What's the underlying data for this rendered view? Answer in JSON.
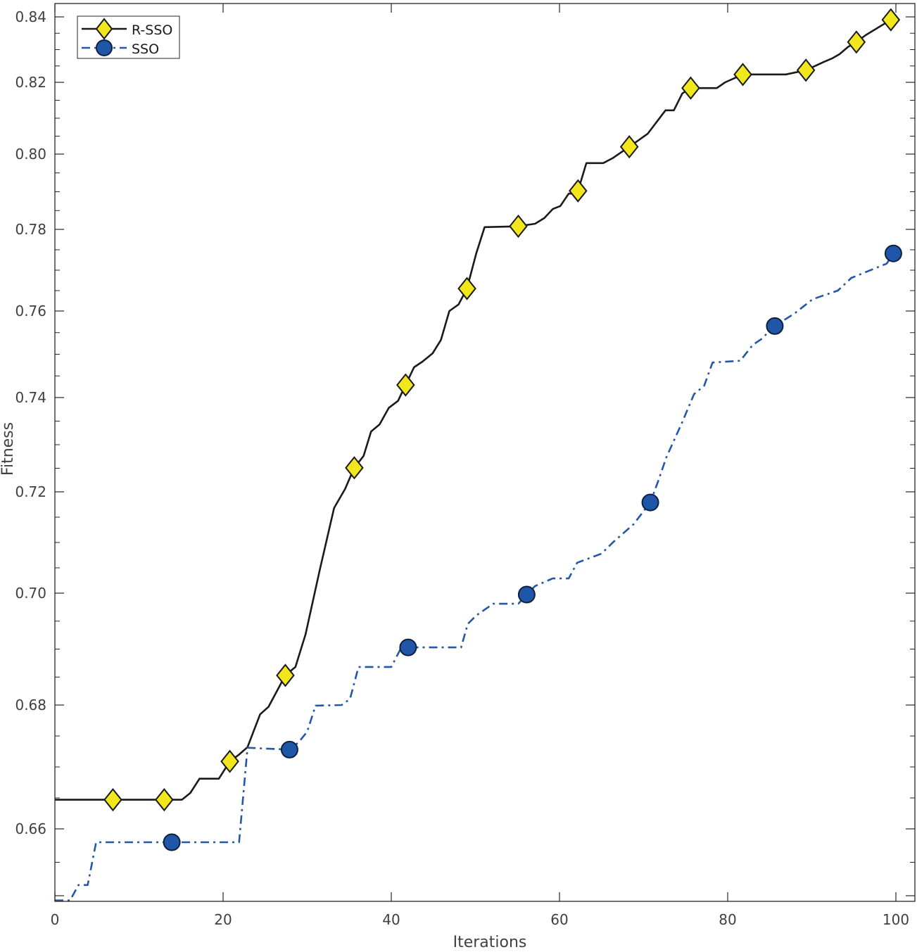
{
  "chart_data": {
    "type": "line",
    "title": "",
    "xlabel": "Iterations",
    "ylabel": "Fitness",
    "xlim": [
      0,
      102.2
    ],
    "ylim": [
      0.6492,
      0.8442
    ],
    "xticks": [
      0,
      20,
      40,
      60,
      80,
      100
    ],
    "xtick_labels": [
      "0",
      "20",
      "40",
      "60",
      "80",
      "100"
    ],
    "yticks": [
      0.65,
      0.66,
      0.68,
      0.7,
      0.72,
      0.74,
      0.76,
      0.78,
      0.8,
      0.82,
      0.84
    ],
    "ytick_labels": [
      "",
      "0.66",
      "0.68",
      "0.70",
      "0.72",
      "0.74",
      "0.76",
      "0.78",
      "0.80",
      "0.82",
      "0.84"
    ],
    "grid": false,
    "legend_position": "top-left",
    "series": [
      {
        "name": "R-SSO",
        "color": "#1a1a1a",
        "marker": "diamond",
        "marker_color": "#f2e61c",
        "line_style": "solid",
        "x": [
          0,
          15.1,
          16.1,
          17.2,
          19.5,
          20.8,
          21.9,
          22.9,
          24.4,
          25.4,
          27.4,
          28.6,
          29.8,
          31.5,
          33.2,
          34.5,
          35.6,
          36.7,
          37.6,
          38.6,
          39.7,
          40.8,
          41.8,
          42.7,
          43.7,
          44.9,
          45.9,
          46.9,
          48.0,
          49.0,
          50.1,
          51.1,
          55.0,
          57.1,
          58.2,
          59.2,
          60.1,
          61.1,
          62.1,
          63.2,
          65.2,
          66.3,
          68.4,
          70.5,
          72.6,
          73.6,
          74.6,
          75.6,
          78.7,
          79.7,
          81.8,
          86.9,
          89.3,
          91.4,
          92.4,
          93.3,
          94.3,
          95.3,
          96.4,
          99.4
        ],
        "y": [
          0.6647,
          0.6647,
          0.6658,
          0.6681,
          0.6681,
          0.6709,
          0.672,
          0.6732,
          0.6785,
          0.6797,
          0.6853,
          0.6868,
          0.6926,
          0.7046,
          0.7168,
          0.7206,
          0.7251,
          0.7276,
          0.7328,
          0.7343,
          0.7378,
          0.7393,
          0.7433,
          0.747,
          0.7483,
          0.7502,
          0.7533,
          0.76,
          0.7616,
          0.7655,
          0.7741,
          0.7806,
          0.7808,
          0.7815,
          0.783,
          0.7854,
          0.7862,
          0.7895,
          0.7895,
          0.7976,
          0.7976,
          0.7989,
          0.8022,
          0.8057,
          0.8122,
          0.8122,
          0.8169,
          0.8184,
          0.8184,
          0.82,
          0.8224,
          0.8224,
          0.8237,
          0.8262,
          0.8273,
          0.8286,
          0.8308,
          0.8323,
          0.8344,
          0.8391
        ],
        "marker_x": [
          6.9,
          13.0,
          20.8,
          27.4,
          35.6,
          41.7,
          49.0,
          55.1,
          62.2,
          68.3,
          75.6,
          81.8,
          89.3,
          95.3,
          99.4
        ]
      },
      {
        "name": "SSO",
        "color": "#2458a6",
        "marker": "circle",
        "marker_color": "#1f56a8",
        "line_style": "dash-dot",
        "x": [
          0,
          1.8,
          2.8,
          3.9,
          4.9,
          21.9,
          22.9,
          27.9,
          29.0,
          30.0,
          31.0,
          34.1,
          35.1,
          36.1,
          40.0,
          41.2,
          48.3,
          49.1,
          50.1,
          52.1,
          55.1,
          57.1,
          59.2,
          61.1,
          62.1,
          65.0,
          66.4,
          68.8,
          70.8,
          71.7,
          72.7,
          74.6,
          76.0,
          77.2,
          78.2,
          81.5,
          83.0,
          84.0,
          85.5,
          88.0,
          90.1,
          93.1,
          94.7,
          98.9,
          99.7
        ],
        "y": [
          0.6493,
          0.6493,
          0.6516,
          0.6516,
          0.658,
          0.658,
          0.6731,
          0.6728,
          0.674,
          0.6757,
          0.6799,
          0.68,
          0.6811,
          0.6868,
          0.6868,
          0.6903,
          0.6903,
          0.6945,
          0.696,
          0.6981,
          0.6981,
          0.7014,
          0.7029,
          0.7029,
          0.706,
          0.7078,
          0.7101,
          0.7136,
          0.7179,
          0.7221,
          0.7273,
          0.7348,
          0.7408,
          0.7427,
          0.7481,
          0.7485,
          0.7522,
          0.7535,
          0.7564,
          0.7595,
          0.7629,
          0.765,
          0.7681,
          0.7716,
          0.7741
        ],
        "marker_x": [
          13.9,
          27.9,
          42.0,
          56.1,
          70.8,
          85.6,
          99.7
        ]
      }
    ]
  }
}
